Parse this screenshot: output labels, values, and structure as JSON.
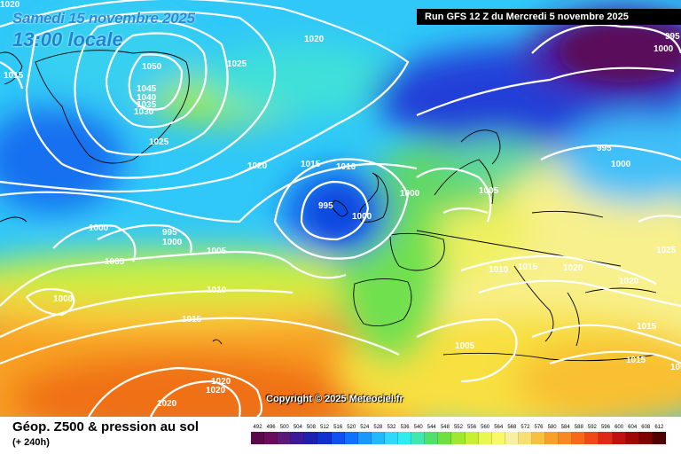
{
  "header": {
    "date_line": "Samedi 15 novembre 2025",
    "time_line": "13:00 locale",
    "run_info": "Run GFS 12 Z du Mercredi 5 novembre 2025"
  },
  "footer": {
    "product": "Géop. Z500 & pression au sol",
    "leadtime": "(+ 240h)",
    "copyright": "Copyright © 2025 Meteociel.fr"
  },
  "legend_scale": {
    "values": [
      "492",
      "496",
      "500",
      "504",
      "508",
      "512",
      "516",
      "520",
      "524",
      "528",
      "532",
      "536",
      "540",
      "544",
      "548",
      "552",
      "556",
      "560",
      "564",
      "568",
      "572",
      "576",
      "580",
      "584",
      "588",
      "592",
      "596",
      "600",
      "604",
      "608",
      "612"
    ],
    "colors": [
      "#5a0a4a",
      "#6a0d5e",
      "#5a1a7a",
      "#3a1a9a",
      "#2020b0",
      "#1030d0",
      "#1050f0",
      "#1070ff",
      "#1898ff",
      "#20b8ff",
      "#30d8ff",
      "#30ecea",
      "#40e8b0",
      "#50e070",
      "#70e040",
      "#a0e830",
      "#c8f030",
      "#e8f850",
      "#f8f868",
      "#f8f0a0",
      "#f8e070",
      "#f8c040",
      "#f8a028",
      "#f88820",
      "#f86818",
      "#f04818",
      "#e02818",
      "#c01010",
      "#a00808",
      "#800000",
      "#500000"
    ]
  },
  "isobar_labels": [
    {
      "text": "1020"
    },
    {
      "text": "1015"
    },
    {
      "text": "1050"
    },
    {
      "text": "1045"
    },
    {
      "text": "1040"
    },
    {
      "text": "1035"
    },
    {
      "text": "1030"
    },
    {
      "text": "1025"
    },
    {
      "text": "1025"
    },
    {
      "text": "1020"
    },
    {
      "text": "1020"
    },
    {
      "text": "1015"
    },
    {
      "text": "1010"
    },
    {
      "text": "995"
    },
    {
      "text": "1000"
    },
    {
      "text": "1000"
    },
    {
      "text": "1000"
    },
    {
      "text": "995"
    },
    {
      "text": "1000"
    },
    {
      "text": "1005"
    },
    {
      "text": "1005"
    },
    {
      "text": "1010"
    },
    {
      "text": "1000"
    },
    {
      "text": "1015"
    },
    {
      "text": "1020"
    },
    {
      "text": "1020"
    },
    {
      "text": "1020"
    },
    {
      "text": "1005"
    },
    {
      "text": "995"
    },
    {
      "text": "1000"
    },
    {
      "text": "1005"
    },
    {
      "text": "1010"
    },
    {
      "text": "1015"
    },
    {
      "text": "1020"
    },
    {
      "text": "1020"
    },
    {
      "text": "1025"
    },
    {
      "text": "1015"
    },
    {
      "text": "1015"
    },
    {
      "text": "1005"
    },
    {
      "text": "995"
    },
    {
      "text": "1000"
    }
  ],
  "map_colors": {
    "deep_purple": "#4a0a5a",
    "violet": "#5a2a9a",
    "dark_blue": "#1a3ad0",
    "blue": "#2070f0",
    "light_blue": "#30b0f8",
    "cyan": "#40d8f0",
    "green": "#60e080",
    "yellow_green": "#a8e840",
    "yellow": "#f0f050",
    "pale_yellow": "#f8f4a0",
    "orange": "#f8b030",
    "dark_orange": "#f08020"
  }
}
